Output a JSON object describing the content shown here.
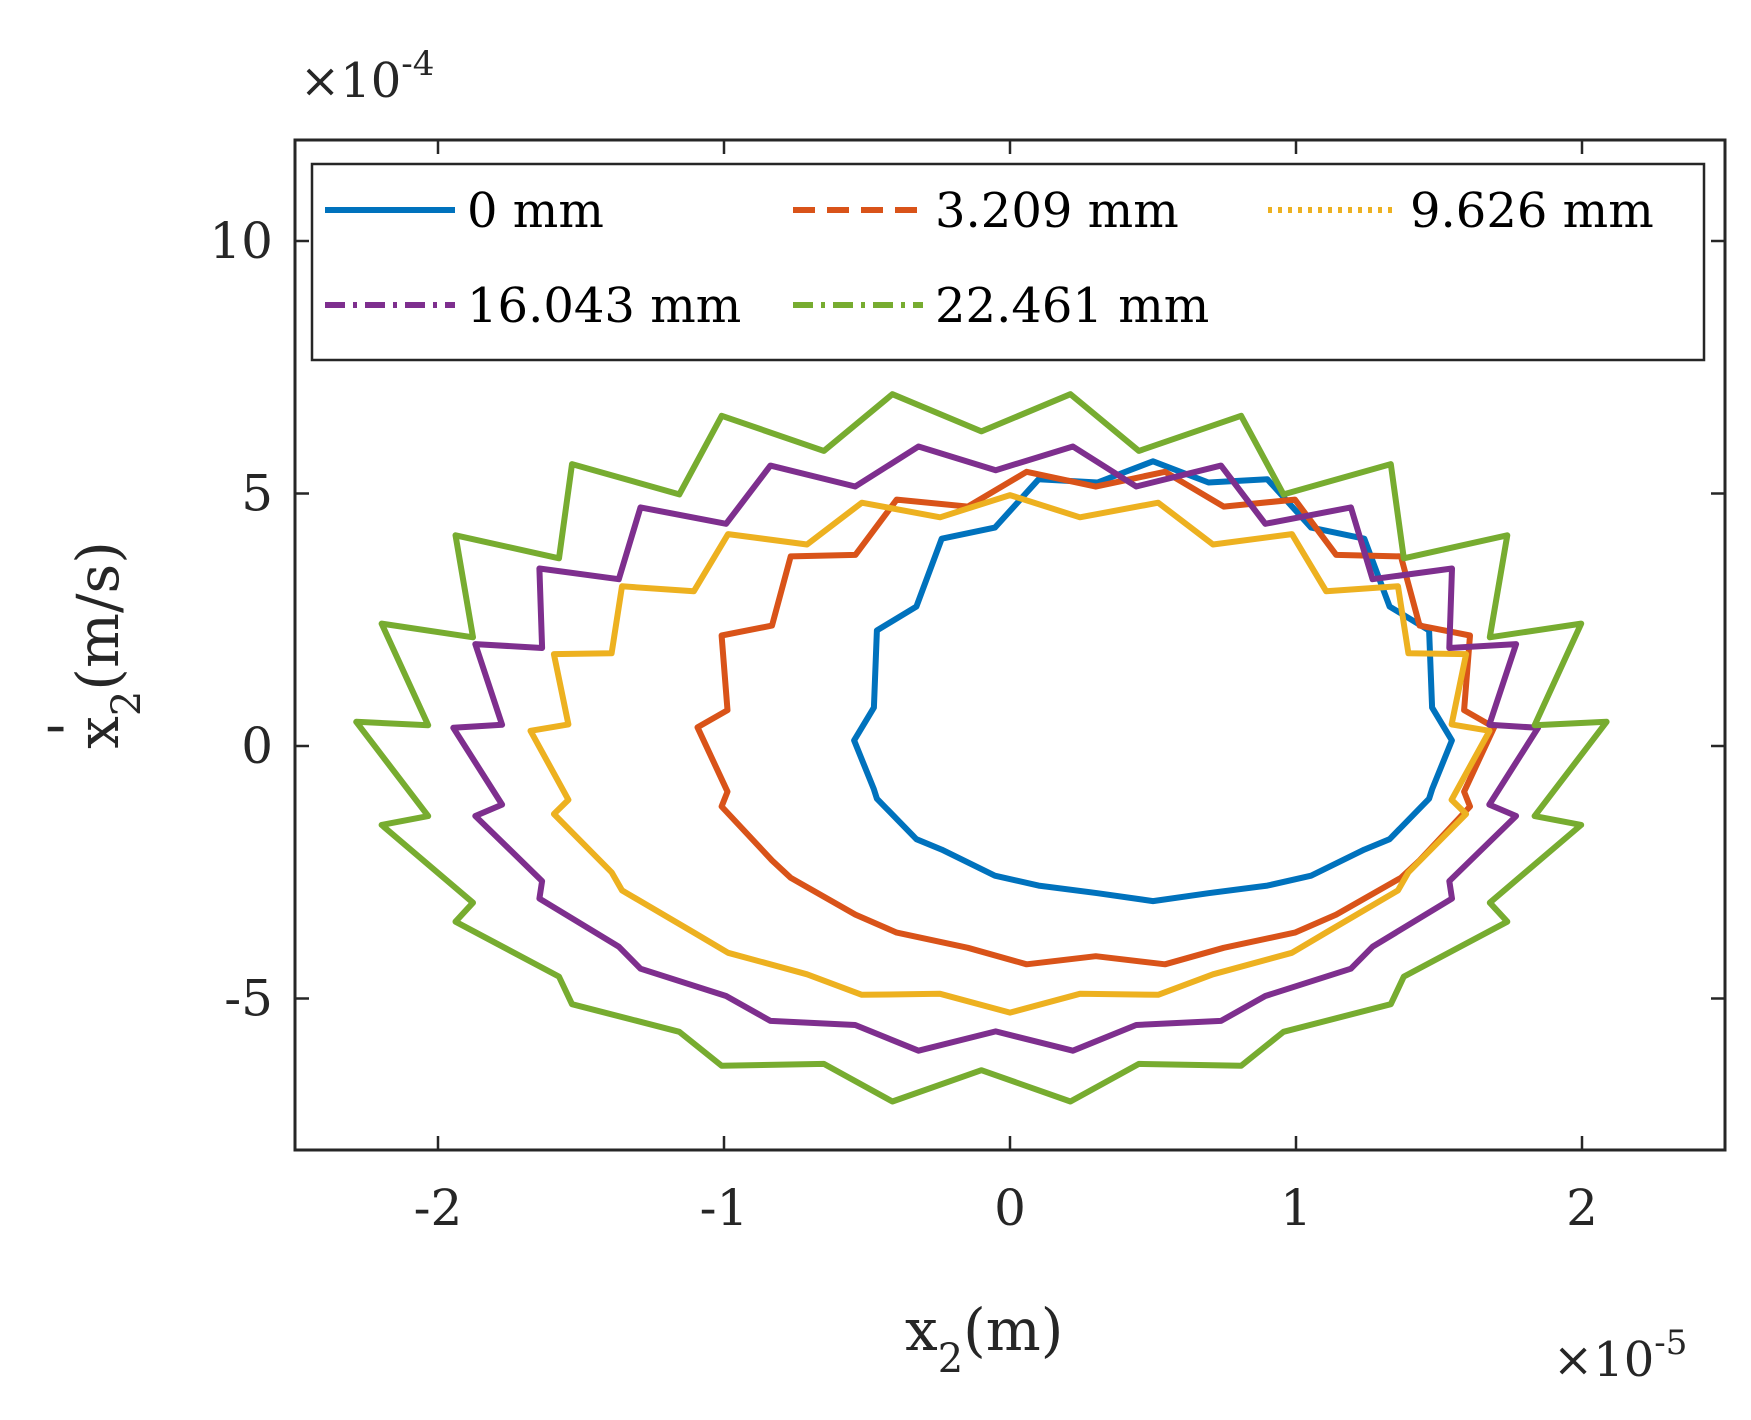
{
  "chart_data": {
    "type": "line",
    "title": "",
    "xlabel": {
      "base": "x",
      "sub": "2",
      "unit": "(m)"
    },
    "ylabel": {
      "base": "x",
      "sub": "2",
      "prime": "'",
      "unit": "(m/s)"
    },
    "x_multiplier": {
      "prefix": "×10",
      "exp": "-5"
    },
    "y_multiplier": {
      "prefix": "×10",
      "exp": "-4"
    },
    "xlim": [
      -2.5,
      2.5
    ],
    "ylim": [
      -8,
      12
    ],
    "xticks": [
      -2,
      -1,
      0,
      1,
      2
    ],
    "xtick_labels": [
      "-2",
      "-1",
      "0",
      "1",
      "2"
    ],
    "yticks": [
      -5,
      0,
      5,
      10
    ],
    "ytick_labels": [
      "-5",
      "0",
      "5",
      "10"
    ],
    "legend_position": "top, inside, 3 columns",
    "series": [
      {
        "name": "0 mm",
        "color": "#0072BD",
        "dash": "solid",
        "center": [
          0.5,
          -0.1
        ],
        "rx": 1.02,
        "ry_top": 5.6,
        "ry_bot": 2.9,
        "amp": 0.35,
        "teeth": 16
      },
      {
        "name": "3.209 mm",
        "color": "#D95319",
        "dash": "dashed",
        "center": [
          0.3,
          0.1
        ],
        "rx": 1.35,
        "ry_top": 5.2,
        "ry_bot": 4.4,
        "amp": 0.45,
        "teeth": 18
      },
      {
        "name": "9.626 mm",
        "color": "#EDB120",
        "dash": "dotted",
        "center": [
          0.0,
          0.0
        ],
        "rx": 1.62,
        "ry_top": 4.8,
        "ry_bot": 5.1,
        "amp": 0.5,
        "teeth": 20
      },
      {
        "name": "16.043 mm",
        "color": "#7E2F8E",
        "dash": "dashdot",
        "center": [
          -0.05,
          0.0
        ],
        "rx": 1.82,
        "ry_top": 5.7,
        "ry_bot": 5.9,
        "amp": 0.6,
        "teeth": 22
      },
      {
        "name": "22.461 mm",
        "color": "#77AC30",
        "dash": "dashdot",
        "center": [
          -0.1,
          0.0
        ],
        "rx": 2.07,
        "ry_top": 6.6,
        "ry_bot": 6.8,
        "amp": 0.8,
        "teeth": 22
      }
    ]
  }
}
